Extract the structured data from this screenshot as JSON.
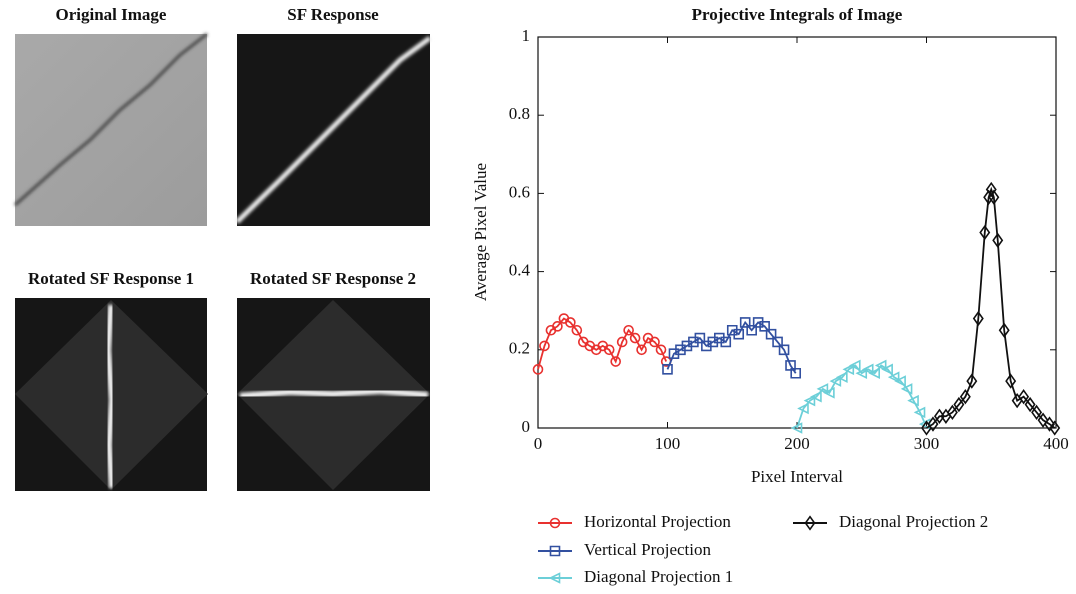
{
  "images": [
    {
      "title": "Original Image"
    },
    {
      "title": "SF Response"
    },
    {
      "title": "Rotated SF Response 1"
    },
    {
      "title": "Rotated SF Response 2"
    }
  ],
  "chart_data": {
    "type": "line",
    "title": "Projective Integrals of Image",
    "xlabel": "Pixel Interval",
    "ylabel": "Average Pixel Value",
    "xlim": [
      0,
      400
    ],
    "ylim": [
      0,
      1
    ],
    "xticks": [
      0,
      100,
      200,
      300,
      400
    ],
    "yticks": [
      0,
      0.2,
      0.4,
      0.6,
      0.8,
      1
    ],
    "legend_position": "bottom",
    "series": [
      {
        "name": "Horizontal Projection",
        "color": "#e8312f",
        "marker": "circle",
        "x": [
          0,
          5,
          10,
          15,
          20,
          25,
          30,
          35,
          40,
          45,
          50,
          55,
          60,
          65,
          70,
          75,
          80,
          85,
          90,
          95,
          99
        ],
        "values": [
          0.15,
          0.21,
          0.25,
          0.26,
          0.28,
          0.27,
          0.25,
          0.22,
          0.21,
          0.2,
          0.21,
          0.2,
          0.17,
          0.22,
          0.25,
          0.23,
          0.2,
          0.23,
          0.22,
          0.2,
          0.17
        ]
      },
      {
        "name": "Vertical Projection",
        "color": "#3250a0",
        "marker": "square",
        "x": [
          100,
          105,
          110,
          115,
          120,
          125,
          130,
          135,
          140,
          145,
          150,
          155,
          160,
          165,
          170,
          175,
          180,
          185,
          190,
          195,
          199
        ],
        "values": [
          0.15,
          0.19,
          0.2,
          0.21,
          0.22,
          0.23,
          0.21,
          0.22,
          0.23,
          0.22,
          0.25,
          0.24,
          0.27,
          0.25,
          0.27,
          0.26,
          0.24,
          0.22,
          0.2,
          0.16,
          0.14
        ]
      },
      {
        "name": "Diagonal Projection 1",
        "color": "#6ccfd8",
        "marker": "triangle-left",
        "x": [
          200,
          205,
          210,
          215,
          220,
          225,
          230,
          235,
          240,
          245,
          250,
          255,
          260,
          265,
          270,
          275,
          280,
          285,
          290,
          295,
          299
        ],
        "values": [
          0.0,
          0.05,
          0.07,
          0.08,
          0.1,
          0.09,
          0.12,
          0.13,
          0.15,
          0.16,
          0.14,
          0.15,
          0.14,
          0.16,
          0.15,
          0.13,
          0.12,
          0.1,
          0.07,
          0.04,
          0.01
        ]
      },
      {
        "name": "Diagonal Projection 2",
        "color": "#111111",
        "marker": "diamond",
        "x": [
          300,
          305,
          310,
          315,
          320,
          325,
          330,
          335,
          340,
          345,
          348,
          350,
          352,
          355,
          360,
          365,
          370,
          375,
          380,
          385,
          390,
          395,
          399
        ],
        "values": [
          0.0,
          0.01,
          0.03,
          0.03,
          0.04,
          0.06,
          0.08,
          0.12,
          0.28,
          0.5,
          0.59,
          0.61,
          0.59,
          0.48,
          0.25,
          0.12,
          0.07,
          0.08,
          0.06,
          0.04,
          0.02,
          0.01,
          0.0
        ]
      }
    ]
  }
}
